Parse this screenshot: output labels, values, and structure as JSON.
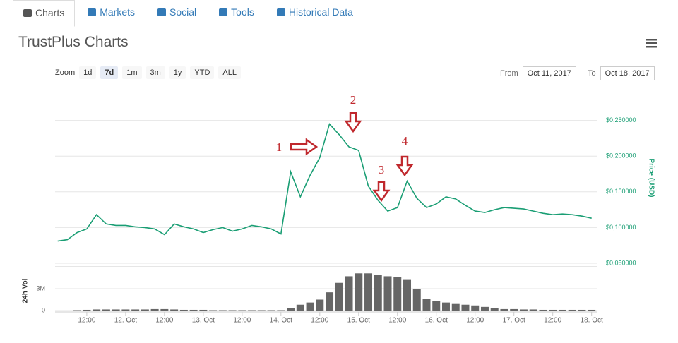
{
  "tabs": [
    "Charts",
    "Markets",
    "Social",
    "Tools",
    "Historical Data"
  ],
  "title": "TrustPlus Charts",
  "zoom_label": "Zoom",
  "zoom_options": [
    "1d",
    "7d",
    "1m",
    "3m",
    "1y",
    "YTD",
    "ALL"
  ],
  "from_label": "From",
  "from_date": "Oct 11, 2017",
  "to_label": "To",
  "to_date": "Oct 18, 2017",
  "chart_data": [
    {
      "type": "line",
      "color": "#1a9e74",
      "ylabel": "Price (USD)",
      "grid": true,
      "xlim": [
        26.2,
        193.6
      ],
      "ylim": [
        0.05,
        0.3
      ],
      "yticks": [
        {
          "value": 0.05,
          "label": "$0,050000"
        },
        {
          "value": 0.1,
          "label": "$0,100000"
        },
        {
          "value": 0.15,
          "label": "$0,150000"
        },
        {
          "value": 0.2,
          "label": "$0,200000"
        },
        {
          "value": 0.25,
          "label": "$0,250000"
        }
      ],
      "annotations": [
        "1",
        "2",
        "3",
        "4"
      ],
      "x": [
        27,
        30,
        33,
        36,
        39,
        42,
        45,
        48,
        51,
        54,
        57,
        60,
        63,
        66,
        69,
        72,
        75,
        78,
        81,
        84,
        87,
        90,
        93,
        96,
        99,
        102,
        105,
        108,
        111,
        114,
        117,
        120,
        123,
        126,
        129,
        132,
        135,
        138,
        141,
        144,
        147,
        150,
        153,
        156,
        159,
        162,
        165,
        168,
        171,
        174,
        177,
        180,
        183,
        186,
        189,
        192
      ],
      "values": [
        0.081,
        0.083,
        0.093,
        0.098,
        0.118,
        0.105,
        0.103,
        0.103,
        0.101,
        0.1,
        0.098,
        0.09,
        0.105,
        0.101,
        0.098,
        0.093,
        0.097,
        0.1,
        0.095,
        0.098,
        0.103,
        0.101,
        0.098,
        0.091,
        0.178,
        0.143,
        0.173,
        0.198,
        0.245,
        0.23,
        0.213,
        0.208,
        0.158,
        0.138,
        0.123,
        0.128,
        0.165,
        0.141,
        0.128,
        0.133,
        0.143,
        0.14,
        0.131,
        0.123,
        0.121,
        0.125,
        0.128,
        0.127,
        0.126,
        0.123,
        0.12,
        0.118,
        0.119,
        0.118,
        0.116,
        0.113
      ]
    },
    {
      "type": "bar",
      "color": "#666666",
      "ylabel": "24h Vol",
      "xlim": [
        26.2,
        193.6
      ],
      "ylim": [
        0,
        6000000
      ],
      "yticks": [
        0,
        {
          "value": 3000000,
          "label": "3M"
        }
      ],
      "xticks": [
        {
          "value": 36,
          "label": "12:00"
        },
        {
          "value": 48,
          "label": "12. Oct"
        },
        {
          "value": 60,
          "label": "12:00"
        },
        {
          "value": 72,
          "label": "13. Oct"
        },
        {
          "value": 84,
          "label": "12:00"
        },
        {
          "value": 96,
          "label": "14. Oct"
        },
        {
          "value": 108,
          "label": "12:00"
        },
        {
          "value": 120,
          "label": "15. Oct"
        },
        {
          "value": 132,
          "label": "12:00"
        },
        {
          "value": 144,
          "label": "16. Oct"
        },
        {
          "value": 156,
          "label": "12:00"
        },
        {
          "value": 168,
          "label": "17. Oct"
        },
        {
          "value": 180,
          "label": "12:00"
        },
        {
          "value": 192,
          "label": "18. Oct"
        }
      ],
      "x": [
        27,
        30,
        33,
        36,
        39,
        42,
        45,
        48,
        51,
        54,
        57,
        60,
        63,
        66,
        69,
        72,
        75,
        78,
        81,
        84,
        87,
        90,
        93,
        96,
        99,
        102,
        105,
        108,
        111,
        114,
        117,
        120,
        123,
        126,
        129,
        132,
        135,
        138,
        141,
        144,
        147,
        150,
        153,
        156,
        159,
        162,
        165,
        168,
        171,
        174,
        177,
        180,
        183,
        186,
        189,
        192
      ],
      "values": [
        0,
        0,
        50000,
        100000,
        150000,
        150000,
        150000,
        150000,
        150000,
        150000,
        200000,
        200000,
        150000,
        100000,
        100000,
        100000,
        50000,
        50000,
        50000,
        50000,
        50000,
        50000,
        50000,
        50000,
        300000,
        800000,
        1100000,
        1500000,
        2500000,
        3800000,
        4700000,
        5100000,
        5100000,
        4900000,
        4700000,
        4600000,
        4200000,
        3000000,
        1600000,
        1300000,
        1100000,
        900000,
        800000,
        700000,
        500000,
        300000,
        200000,
        200000,
        150000,
        150000,
        100000,
        100000,
        100000,
        100000,
        100000,
        100000
      ]
    }
  ]
}
